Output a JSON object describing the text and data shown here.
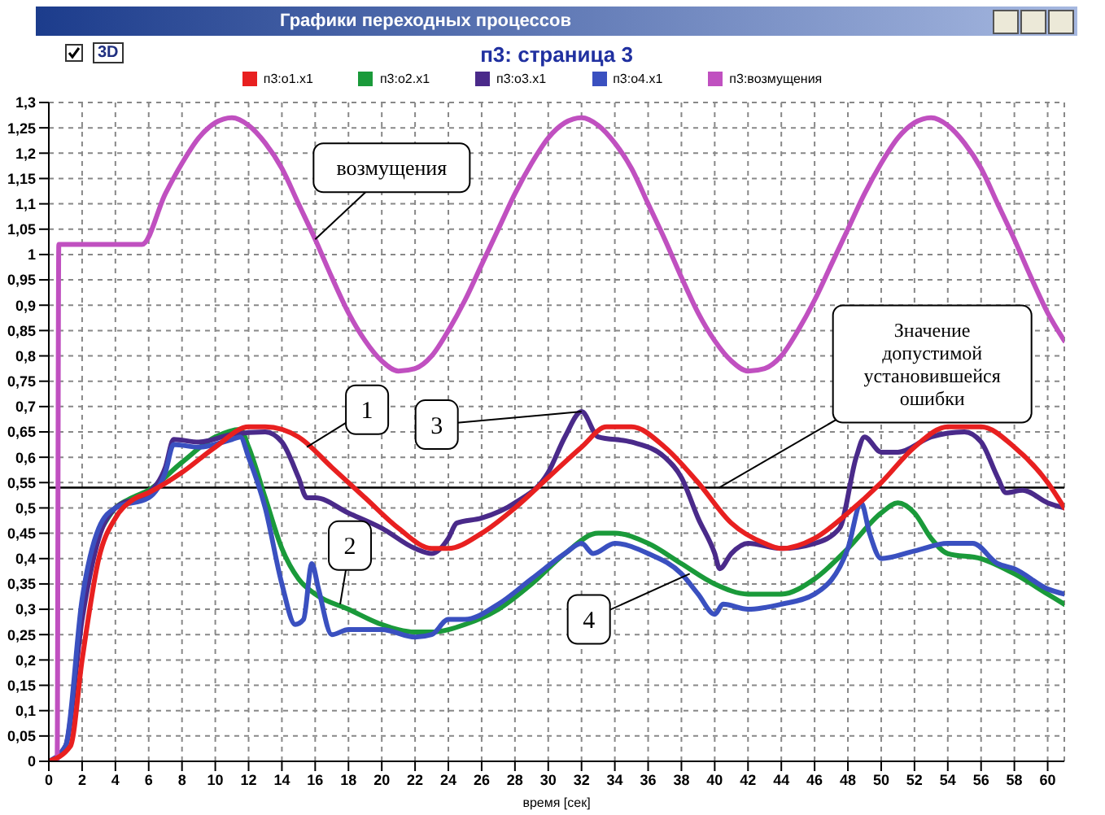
{
  "chart_data": {
    "type": "line",
    "title": "п3: страница 3",
    "xlabel": "время [сек]",
    "annotations": [
      "Графики переходных процессов",
      "3D",
      {
        "text": "возмущения",
        "x": 16,
        "y": 1.03
      },
      {
        "text": "1",
        "x": 15.5,
        "y": 0.62
      },
      {
        "text": "2",
        "x": 17.5,
        "y": 0.31
      },
      {
        "text": "3",
        "x": 32,
        "y": 0.69
      },
      {
        "text": "4",
        "x": 38.5,
        "y": 0.37
      }
    ],
    "ref_lines": [
      {
        "axis": "y",
        "value": 0.54,
        "label": "Значение допустимой установившейся ошибки",
        "color": "#000000"
      }
    ],
    "xlim": [
      0,
      61
    ],
    "xticks": [
      0,
      2,
      4,
      6,
      8,
      10,
      12,
      14,
      16,
      18,
      20,
      22,
      24,
      26,
      28,
      30,
      32,
      34,
      36,
      38,
      40,
      42,
      44,
      46,
      48,
      50,
      52,
      54,
      56,
      58,
      60
    ],
    "ylim": [
      0,
      1.3
    ],
    "yticks": [
      0,
      {
        "value": 0.05,
        "label": "0,05"
      },
      {
        "value": 0.1,
        "label": "0,1"
      },
      {
        "value": 0.15,
        "label": "0,15"
      },
      {
        "value": 0.2,
        "label": "0,2"
      },
      {
        "value": 0.25,
        "label": "0,25"
      },
      {
        "value": 0.3,
        "label": "0,3"
      },
      {
        "value": 0.35,
        "label": "0,35"
      },
      {
        "value": 0.4,
        "label": "0,4"
      },
      {
        "value": 0.45,
        "label": "0,45"
      },
      {
        "value": 0.5,
        "label": "0,5"
      },
      {
        "value": 0.55,
        "label": "0,55"
      },
      {
        "value": 0.6,
        "label": "0,6"
      },
      {
        "value": 0.65,
        "label": "0,65"
      },
      {
        "value": 0.7,
        "label": "0,7"
      },
      {
        "value": 0.75,
        "label": "0,75"
      },
      {
        "value": 0.8,
        "label": "0,8"
      },
      {
        "value": 0.85,
        "label": "0,85"
      },
      {
        "value": 0.9,
        "label": "0,9"
      },
      {
        "value": 0.95,
        "label": "0,95"
      },
      1,
      {
        "value": 1.05,
        "label": "1,05"
      },
      {
        "value": 1.1,
        "label": "1,1"
      },
      {
        "value": 1.15,
        "label": "1,15"
      },
      {
        "value": 1.2,
        "label": "1,2"
      },
      {
        "value": 1.25,
        "label": "1,25"
      },
      {
        "value": 1.3,
        "label": "1,3"
      }
    ],
    "grid": true,
    "legend": "top",
    "line_style": "solid",
    "series": [
      {
        "name": "п3:o1.x1",
        "color": "#e82020",
        "x": [
          0,
          1.3,
          2,
          3,
          4,
          5,
          6,
          8,
          10,
          12,
          13,
          15,
          17,
          19,
          21,
          23,
          24,
          26,
          28,
          30,
          32,
          33.5,
          35,
          37,
          39,
          41,
          43,
          44,
          46,
          48,
          50,
          52,
          54,
          56,
          58,
          60,
          61
        ],
        "values": [
          0,
          0.03,
          0.2,
          0.4,
          0.48,
          0.515,
          0.53,
          0.57,
          0.62,
          0.66,
          0.66,
          0.64,
          0.58,
          0.52,
          0.46,
          0.42,
          0.42,
          0.45,
          0.5,
          0.56,
          0.62,
          0.66,
          0.66,
          0.62,
          0.55,
          0.47,
          0.43,
          0.42,
          0.44,
          0.49,
          0.55,
          0.62,
          0.66,
          0.66,
          0.62,
          0.55,
          0.5
        ]
      },
      {
        "name": "п3:o2.x1",
        "color": "#1a9a3a",
        "x": [
          3,
          4,
          5,
          6,
          8,
          10,
          11.5,
          12,
          13,
          14,
          15,
          16,
          18,
          20,
          22,
          23,
          25,
          27,
          29,
          31,
          33,
          34,
          36,
          38,
          40,
          42,
          44,
          46,
          48,
          50,
          51,
          52,
          53,
          54,
          56,
          58,
          60,
          61
        ],
        "values": [
          0.45,
          0.5,
          0.52,
          0.535,
          0.59,
          0.64,
          0.655,
          0.62,
          0.52,
          0.42,
          0.36,
          0.33,
          0.3,
          0.27,
          0.255,
          0.255,
          0.27,
          0.3,
          0.35,
          0.41,
          0.45,
          0.45,
          0.43,
          0.39,
          0.35,
          0.33,
          0.33,
          0.36,
          0.42,
          0.49,
          0.51,
          0.49,
          0.44,
          0.41,
          0.4,
          0.37,
          0.33,
          0.31
        ]
      },
      {
        "name": "п3:o3.x1",
        "color": "#4a2a8a",
        "x": [
          0,
          1,
          2,
          3,
          4,
          6,
          7,
          7.5,
          9,
          11,
          13,
          14,
          15,
          15.5,
          16,
          18,
          20,
          22,
          23,
          24,
          24.5,
          26,
          28,
          30,
          31,
          32,
          33,
          35,
          37,
          38,
          39,
          40,
          40.3,
          41,
          42,
          44,
          46,
          47.5,
          48.5,
          49,
          50,
          51,
          53,
          55,
          56,
          57,
          57.5,
          58.5,
          60,
          61
        ],
        "values": [
          0,
          0.03,
          0.28,
          0.44,
          0.5,
          0.53,
          0.58,
          0.635,
          0.63,
          0.645,
          0.65,
          0.63,
          0.56,
          0.52,
          0.52,
          0.49,
          0.46,
          0.42,
          0.41,
          0.44,
          0.47,
          0.48,
          0.51,
          0.57,
          0.64,
          0.69,
          0.64,
          0.63,
          0.6,
          0.56,
          0.48,
          0.41,
          0.38,
          0.41,
          0.43,
          0.42,
          0.43,
          0.46,
          0.6,
          0.64,
          0.61,
          0.61,
          0.64,
          0.65,
          0.63,
          0.56,
          0.53,
          0.535,
          0.51,
          0.5
        ]
      },
      {
        "name": "п3:o4.x1",
        "color": "#3a50c0",
        "x": [
          0,
          1,
          2,
          3,
          4,
          6,
          7,
          7.5,
          9,
          11,
          11.5,
          12,
          13,
          14,
          14.8,
          15.3,
          15.8,
          16.2,
          17,
          18,
          20,
          22,
          23,
          24,
          25,
          27,
          29,
          31,
          32,
          32.7,
          34,
          36,
          38,
          39,
          40,
          40.5,
          42,
          44,
          46,
          48,
          48.8,
          49.3,
          50,
          52,
          54,
          55.5,
          57,
          58,
          60,
          61
        ],
        "values": [
          0,
          0.03,
          0.32,
          0.46,
          0.5,
          0.52,
          0.57,
          0.625,
          0.62,
          0.635,
          0.64,
          0.6,
          0.5,
          0.35,
          0.27,
          0.28,
          0.39,
          0.34,
          0.25,
          0.26,
          0.26,
          0.245,
          0.25,
          0.28,
          0.28,
          0.31,
          0.36,
          0.41,
          0.43,
          0.41,
          0.43,
          0.41,
          0.37,
          0.33,
          0.29,
          0.31,
          0.3,
          0.31,
          0.33,
          0.42,
          0.51,
          0.45,
          0.4,
          0.415,
          0.43,
          0.43,
          0.39,
          0.38,
          0.34,
          0.33
        ]
      },
      {
        "name": "п3:возмущения",
        "color": "#c050c0",
        "x": [
          0,
          0.5,
          0.6,
          5.6,
          7,
          8,
          9,
          10,
          11,
          12,
          13,
          14,
          15,
          16,
          17,
          18,
          19,
          20,
          21,
          22,
          23,
          24,
          25,
          26,
          27,
          28,
          29,
          30,
          31,
          32,
          33,
          34,
          35,
          36,
          37,
          38,
          39,
          40,
          41,
          42,
          43,
          44,
          45,
          46,
          47,
          48,
          49,
          50,
          51,
          52,
          53,
          54,
          55,
          56,
          57,
          58,
          59,
          60,
          61
        ],
        "values": [
          0,
          0,
          1.02,
          1.02,
          1.12,
          1.18,
          1.23,
          1.26,
          1.27,
          1.255,
          1.22,
          1.17,
          1.1,
          1.03,
          0.955,
          0.885,
          0.83,
          0.79,
          0.77,
          0.775,
          0.8,
          0.85,
          0.91,
          0.98,
          1.05,
          1.12,
          1.18,
          1.23,
          1.26,
          1.27,
          1.255,
          1.22,
          1.17,
          1.1,
          1.03,
          0.955,
          0.885,
          0.83,
          0.79,
          0.77,
          0.775,
          0.8,
          0.85,
          0.91,
          0.98,
          1.05,
          1.12,
          1.18,
          1.23,
          1.26,
          1.27,
          1.255,
          1.22,
          1.17,
          1.1,
          1.03,
          0.955,
          0.885,
          0.83
        ]
      }
    ]
  }
}
